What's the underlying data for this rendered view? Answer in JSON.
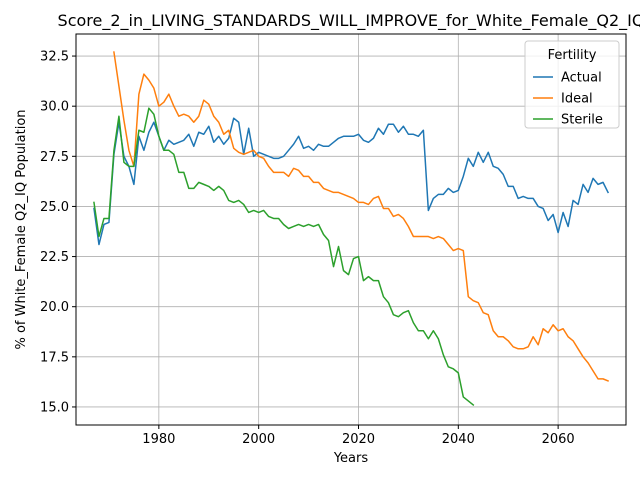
{
  "chart_data": {
    "type": "line",
    "title": "Score_2_in_LIVING_STANDARDS_WILL_IMPROVE_for_White_Female_Q2_IQ",
    "xlabel": "Years",
    "ylabel": "% of White_Female Q2_IQ Population",
    "xlim": [
      1963.4,
      2073.6
    ],
    "ylim": [
      14.1,
      33.6
    ],
    "x_ticks": [
      1980,
      2000,
      2020,
      2040,
      2060
    ],
    "y_ticks": [
      15.0,
      17.5,
      20.0,
      22.5,
      25.0,
      27.5,
      30.0,
      32.5
    ],
    "x_tick_labels": [
      "1980",
      "2000",
      "2020",
      "2040",
      "2060"
    ],
    "y_tick_labels": [
      "15.0",
      "17.5",
      "20.0",
      "22.5",
      "25.0",
      "27.5",
      "30.0",
      "32.5"
    ],
    "grid": true,
    "legend": {
      "title": "Fertility",
      "placement": "top-right"
    },
    "series": [
      {
        "name": "Actual",
        "color": "#1f77b4",
        "x": [
          1967,
          1968,
          1969,
          1970,
          1971,
          1972,
          1973,
          1974,
          1975,
          1976,
          1977,
          1978,
          1979,
          1980,
          1981,
          1982,
          1983,
          1984,
          1985,
          1986,
          1987,
          1988,
          1989,
          1990,
          1991,
          1992,
          1993,
          1994,
          1995,
          1996,
          1997,
          1998,
          1999,
          2000,
          2001,
          2002,
          2003,
          2004,
          2005,
          2006,
          2007,
          2008,
          2009,
          2010,
          2011,
          2012,
          2013,
          2014,
          2015,
          2016,
          2017,
          2018,
          2019,
          2020,
          2021,
          2022,
          2023,
          2024,
          2025,
          2026,
          2027,
          2028,
          2029,
          2030,
          2031,
          2032,
          2033,
          2034,
          2035,
          2036,
          2037,
          2038,
          2039,
          2040,
          2041,
          2042,
          2043,
          2044,
          2045,
          2046,
          2047,
          2048,
          2049,
          2050,
          2051,
          2052,
          2053,
          2054,
          2055,
          2056,
          2057,
          2058,
          2059,
          2060,
          2061,
          2062,
          2063,
          2064,
          2065,
          2066,
          2067,
          2068,
          2069,
          2070
        ],
        "values": [
          24.9,
          23.1,
          24.1,
          24.2,
          27.6,
          29.2,
          27.5,
          27.0,
          26.1,
          28.5,
          27.8,
          28.7,
          29.2,
          28.5,
          27.8,
          28.3,
          28.1,
          28.2,
          28.3,
          28.6,
          28.0,
          28.7,
          28.6,
          29.0,
          28.2,
          28.5,
          28.1,
          28.4,
          29.4,
          29.2,
          27.6,
          28.9,
          27.5,
          27.7,
          27.6,
          27.5,
          27.4,
          27.4,
          27.5,
          27.8,
          28.1,
          28.5,
          27.9,
          28.0,
          27.8,
          28.1,
          28.0,
          28.0,
          28.2,
          28.4,
          28.5,
          28.5,
          28.5,
          28.6,
          28.3,
          28.2,
          28.4,
          28.9,
          28.6,
          29.1,
          29.1,
          28.7,
          29.0,
          28.6,
          28.6,
          28.5,
          28.8,
          24.8,
          25.4,
          25.6,
          25.6,
          25.9,
          25.7,
          25.8,
          26.5,
          27.4,
          27.0,
          27.7,
          27.2,
          27.7,
          27.0,
          26.9,
          26.6,
          26.0,
          26.0,
          25.4,
          25.5,
          25.4,
          25.4,
          25.0,
          24.9,
          24.3,
          24.6,
          23.7,
          24.7,
          24.0,
          25.3,
          25.1,
          26.1,
          25.7,
          26.4,
          26.1,
          26.2,
          25.7
        ]
      },
      {
        "name": "Ideal",
        "color": "#ff7f0e",
        "x": [
          1971,
          1972,
          1973,
          1974,
          1975,
          1976,
          1977,
          1978,
          1979,
          1980,
          1981,
          1982,
          1983,
          1984,
          1985,
          1986,
          1987,
          1988,
          1989,
          1990,
          1991,
          1992,
          1993,
          1994,
          1995,
          1996,
          1997,
          1998,
          1999,
          2000,
          2001,
          2002,
          2003,
          2004,
          2005,
          2006,
          2007,
          2008,
          2009,
          2010,
          2011,
          2012,
          2013,
          2014,
          2015,
          2016,
          2017,
          2018,
          2019,
          2020,
          2021,
          2022,
          2023,
          2024,
          2025,
          2026,
          2027,
          2028,
          2029,
          2030,
          2031,
          2032,
          2033,
          2034,
          2035,
          2036,
          2037,
          2038,
          2039,
          2040,
          2041,
          2042,
          2043,
          2044,
          2045,
          2046,
          2047,
          2048,
          2049,
          2050,
          2051,
          2052,
          2053,
          2054,
          2055,
          2056,
          2057,
          2058,
          2059,
          2060,
          2061,
          2062,
          2063,
          2064,
          2065,
          2066,
          2067,
          2068,
          2069,
          2070
        ],
        "values": [
          32.7,
          31.0,
          29.3,
          27.8,
          27.0,
          30.6,
          31.6,
          31.3,
          30.9,
          30.0,
          30.2,
          30.6,
          30.0,
          29.5,
          29.6,
          29.5,
          29.2,
          29.5,
          30.3,
          30.1,
          29.5,
          29.2,
          28.6,
          28.8,
          27.9,
          27.7,
          27.6,
          27.7,
          27.8,
          27.5,
          27.4,
          27.0,
          26.7,
          26.7,
          26.7,
          26.5,
          26.9,
          26.8,
          26.5,
          26.5,
          26.2,
          26.2,
          25.9,
          25.8,
          25.7,
          25.7,
          25.6,
          25.5,
          25.4,
          25.2,
          25.2,
          25.1,
          25.4,
          25.5,
          24.9,
          24.9,
          24.5,
          24.6,
          24.4,
          24.0,
          23.5,
          23.5,
          23.5,
          23.5,
          23.4,
          23.5,
          23.4,
          23.1,
          22.8,
          22.9,
          22.8,
          20.5,
          20.3,
          20.2,
          19.7,
          19.6,
          18.8,
          18.5,
          18.5,
          18.3,
          18.0,
          17.9,
          17.9,
          18.0,
          18.5,
          18.1,
          18.9,
          18.7,
          19.1,
          18.8,
          18.9,
          18.5,
          18.3,
          17.9,
          17.5,
          17.2,
          16.8,
          16.4,
          16.4,
          16.3
        ]
      },
      {
        "name": "Sterile",
        "color": "#2ca02c",
        "x": [
          1967,
          1968,
          1969,
          1970,
          1971,
          1972,
          1973,
          1974,
          1975,
          1976,
          1977,
          1978,
          1979,
          1980,
          1981,
          1982,
          1983,
          1984,
          1985,
          1986,
          1987,
          1988,
          1989,
          1990,
          1991,
          1992,
          1993,
          1994,
          1995,
          1996,
          1997,
          1998,
          1999,
          2000,
          2001,
          2002,
          2003,
          2004,
          2005,
          2006,
          2007,
          2008,
          2009,
          2010,
          2011,
          2012,
          2013,
          2014,
          2015,
          2016,
          2017,
          2018,
          2019,
          2020,
          2021,
          2022,
          2023,
          2024,
          2025,
          2026,
          2027,
          2028,
          2029,
          2030,
          2031,
          2032,
          2033,
          2034,
          2035,
          2036,
          2037,
          2038,
          2039,
          2040,
          2041,
          2042,
          2043
        ],
        "values": [
          25.2,
          23.5,
          24.4,
          24.4,
          27.8,
          29.5,
          27.2,
          27.0,
          27.0,
          28.8,
          28.7,
          29.9,
          29.6,
          28.5,
          27.8,
          27.8,
          27.6,
          26.7,
          26.7,
          25.9,
          25.9,
          26.2,
          26.1,
          26.0,
          25.8,
          26.0,
          25.8,
          25.3,
          25.2,
          25.3,
          25.1,
          24.7,
          24.8,
          24.7,
          24.8,
          24.5,
          24.4,
          24.4,
          24.1,
          23.9,
          24.0,
          24.1,
          24.0,
          24.1,
          24.0,
          24.1,
          23.6,
          23.3,
          22.0,
          23.0,
          21.8,
          21.6,
          22.4,
          22.5,
          21.3,
          21.5,
          21.3,
          21.3,
          20.5,
          20.2,
          19.6,
          19.5,
          19.7,
          19.8,
          19.2,
          18.8,
          18.8,
          18.4,
          18.8,
          18.4,
          17.6,
          17.0,
          16.9,
          16.7,
          15.5,
          15.3,
          15.1
        ]
      }
    ]
  }
}
